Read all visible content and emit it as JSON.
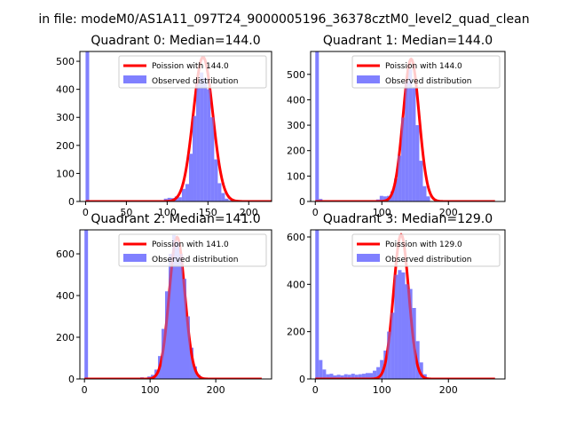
{
  "suptitle": "in file: modeM0/AS1A11_097T24_9000005196_36378cztM0_level2_quad_clean",
  "colors": {
    "poisson": "#ff0000",
    "hist": "#8080ff",
    "spine": "#000000"
  },
  "chart_data": [
    {
      "type": "bar",
      "title": "Quadrant 0: Median=144.0",
      "xlim": [
        -7,
        228
      ],
      "ylim": [
        0,
        535
      ],
      "xticks": [
        0,
        50,
        100,
        150,
        200
      ],
      "yticks": [
        0,
        100,
        200,
        300,
        400,
        500
      ],
      "xtick_labels": [
        "0",
        "50",
        "100",
        "150",
        "200"
      ],
      "ytick_labels": [
        "0",
        "100",
        "200",
        "300",
        "400",
        "500"
      ],
      "poisson_mean": 144.0,
      "poisson_peak": 515,
      "legend": [
        "Poission with 144.0",
        "Observed distribution"
      ],
      "legend_position": "top-right",
      "bins": [
        [
          0,
          4.4,
          535
        ],
        [
          96,
          100.4,
          10
        ],
        [
          100.4,
          104.8,
          13
        ],
        [
          104.8,
          109.2,
          12
        ],
        [
          109.2,
          113.6,
          18
        ],
        [
          113.6,
          118,
          15
        ],
        [
          118,
          122.4,
          45
        ],
        [
          122.4,
          126.8,
          62
        ],
        [
          126.8,
          131.2,
          170
        ],
        [
          131.2,
          135.6,
          305
        ],
        [
          135.6,
          140,
          420
        ],
        [
          140,
          144.4,
          460
        ],
        [
          144.4,
          148.8,
          440
        ],
        [
          148.8,
          153.2,
          400
        ],
        [
          153.2,
          157.6,
          300
        ],
        [
          157.6,
          162,
          150
        ],
        [
          162,
          166.4,
          65
        ],
        [
          166.4,
          170.8,
          30
        ],
        [
          170.8,
          175.2,
          10
        ],
        [
          175.2,
          179.6,
          4
        ]
      ]
    },
    {
      "type": "bar",
      "title": "Quadrant 1: Median=144.0",
      "xlim": [
        -7,
        285
      ],
      "ylim": [
        0,
        590
      ],
      "xticks": [
        0,
        100,
        200
      ],
      "yticks": [
        0,
        100,
        200,
        300,
        400,
        500
      ],
      "xtick_labels": [
        "0",
        "100",
        "200"
      ],
      "ytick_labels": [
        "0",
        "100",
        "200",
        "300",
        "400",
        "500"
      ],
      "poisson_mean": 144.0,
      "poisson_peak": 560,
      "legend": [
        "Poission with 144.0",
        "Observed distribution"
      ],
      "legend_position": "top-right",
      "bins": [
        [
          0,
          5.4,
          590
        ],
        [
          5.4,
          10.8,
          10
        ],
        [
          10.8,
          16.2,
          5
        ],
        [
          86,
          91.4,
          5
        ],
        [
          91.4,
          96.8,
          8
        ],
        [
          96.8,
          102.2,
          22
        ],
        [
          102.2,
          107.6,
          20
        ],
        [
          107.6,
          113,
          22
        ],
        [
          113,
          118.4,
          40
        ],
        [
          118.4,
          123.8,
          90
        ],
        [
          123.8,
          129.2,
          180
        ],
        [
          129.2,
          134.6,
          330
        ],
        [
          134.6,
          140,
          470
        ],
        [
          140,
          145.4,
          520
        ],
        [
          145.4,
          150.8,
          450
        ],
        [
          150.8,
          156.2,
          300
        ],
        [
          156.2,
          161.6,
          160
        ],
        [
          161.6,
          167,
          60
        ],
        [
          167,
          172.4,
          20
        ]
      ]
    },
    {
      "type": "bar",
      "title": "Quadrant 2: Median=141.0",
      "xlim": [
        -7,
        285
      ],
      "ylim": [
        0,
        715
      ],
      "xticks": [
        0,
        100,
        200
      ],
      "yticks": [
        0,
        200,
        400,
        600
      ],
      "xtick_labels": [
        "0",
        "100",
        "200"
      ],
      "ytick_labels": [
        "0",
        "200",
        "400",
        "600"
      ],
      "poisson_mean": 141.0,
      "poisson_peak": 680,
      "legend": [
        "Poission with 141.0",
        "Observed distribution"
      ],
      "legend_position": "top-right",
      "bins": [
        [
          0,
          5.4,
          715
        ],
        [
          85,
          90.4,
          8
        ],
        [
          90.4,
          95.8,
          5
        ],
        [
          95.8,
          101.2,
          12
        ],
        [
          101.2,
          106.6,
          20
        ],
        [
          106.6,
          112,
          45
        ],
        [
          112,
          117.4,
          110
        ],
        [
          117.4,
          122.8,
          240
        ],
        [
          122.8,
          128.2,
          420
        ],
        [
          128.2,
          133.6,
          600
        ],
        [
          133.6,
          139,
          690
        ],
        [
          139,
          144.4,
          660
        ],
        [
          144.4,
          149.8,
          600
        ],
        [
          149.8,
          155.2,
          480
        ],
        [
          155.2,
          160.6,
          300
        ],
        [
          160.6,
          166,
          150
        ],
        [
          166,
          171.4,
          60
        ],
        [
          171.4,
          176.8,
          20
        ],
        [
          176.8,
          182.2,
          5
        ]
      ]
    },
    {
      "type": "bar",
      "title": "Quadrant 3: Median=129.0",
      "xlim": [
        -7,
        285
      ],
      "ylim": [
        0,
        630
      ],
      "xticks": [
        0,
        100,
        200
      ],
      "yticks": [
        0,
        200,
        400,
        600
      ],
      "xtick_labels": [
        "0",
        "100",
        "200"
      ],
      "ytick_labels": [
        "0",
        "200",
        "400",
        "600"
      ],
      "poisson_mean": 129.0,
      "poisson_peak": 610,
      "legend": [
        "Poission with 129.0",
        "Observed distribution"
      ],
      "legend_position": "top-right",
      "bins": [
        [
          0,
          5.4,
          630
        ],
        [
          5.4,
          10.8,
          80
        ],
        [
          10.8,
          16.2,
          40
        ],
        [
          16.2,
          21.6,
          20
        ],
        [
          21.6,
          27,
          22
        ],
        [
          27,
          32.4,
          15
        ],
        [
          32.4,
          37.8,
          18
        ],
        [
          37.8,
          43.2,
          15
        ],
        [
          43.2,
          48.6,
          20
        ],
        [
          48.6,
          54,
          18
        ],
        [
          54,
          59.4,
          22
        ],
        [
          59.4,
          64.8,
          18
        ],
        [
          64.8,
          70.2,
          20
        ],
        [
          70.2,
          75.6,
          22
        ],
        [
          75.6,
          81,
          25
        ],
        [
          81,
          86.4,
          25
        ],
        [
          86.4,
          91.8,
          35
        ],
        [
          91.8,
          97.2,
          50
        ],
        [
          97.2,
          102.6,
          80
        ],
        [
          102.6,
          108,
          120
        ],
        [
          108,
          113.4,
          200
        ],
        [
          113.4,
          118.8,
          280
        ],
        [
          118.8,
          124.2,
          440
        ],
        [
          124.2,
          129.6,
          460
        ],
        [
          129.6,
          135,
          450
        ],
        [
          135,
          140.4,
          400
        ],
        [
          140.4,
          145.8,
          380
        ],
        [
          145.8,
          151.2,
          300
        ],
        [
          151.2,
          156.6,
          160
        ],
        [
          156.6,
          162,
          70
        ],
        [
          162,
          167.4,
          20
        ],
        [
          167.4,
          172.8,
          5
        ]
      ]
    }
  ]
}
